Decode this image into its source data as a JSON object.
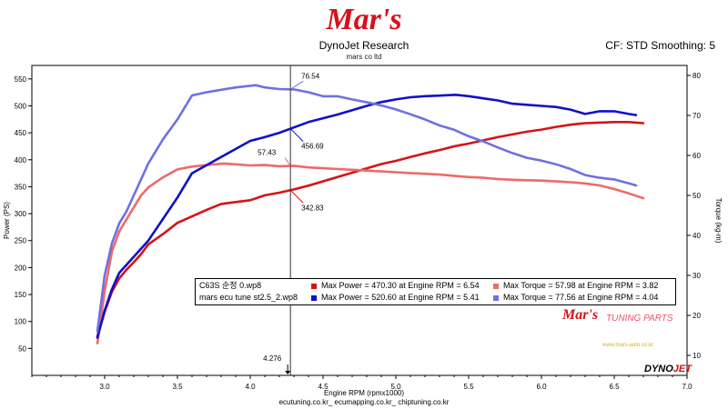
{
  "header": {
    "logo_text": "Mar's",
    "title": "DynoJet Research",
    "subtitle": "mars co ltd",
    "cf_info": "CF: STD Smoothing: 5"
  },
  "footer": "ecutuning.co.kr_ ecumapping.co.kr_ chiptuning.co.kr",
  "watermark": {
    "brand": "Mar's",
    "tuning": "TUNING PARTS",
    "url": "www.mars-auto.co.kr",
    "dynojet": "DYNO",
    "dynojet_b": "JET"
  },
  "legend": {
    "rows": [
      {
        "run": "C63S 순정 0.wp8",
        "power": "Max Power = 470.30 at Engine RPM = 6.54",
        "torque": "Max Torque = 57.98 at Engine RPM = 3.82",
        "power_color": "#d41414",
        "torque_color": "#ee6a6a"
      },
      {
        "run": "mars ecu tune st2.5_2.wp8",
        "power": "Max Power = 520.60 at Engine RPM = 5.41",
        "torque": "Max Torque = 77.56 at Engine RPM = 4.04",
        "power_color": "#1010c8",
        "torque_color": "#7070e0"
      }
    ]
  },
  "cursor": {
    "x_label": "4.276",
    "x": 4.276
  },
  "annotations": [
    {
      "text": "76.54",
      "color": "#7070e0"
    },
    {
      "text": "456.69",
      "color": "#1010c8"
    },
    {
      "text": "57.43",
      "color": "#ee6a6a"
    },
    {
      "text": "342.83",
      "color": "#d41414"
    }
  ],
  "chart_data": {
    "type": "line",
    "xlabel": "Engine RPM (rpmx1000)",
    "ylabel_left": "Power (PS)",
    "ylabel_right": "Torque (kg-m)",
    "xlim": [
      2.5,
      7.0
    ],
    "ylim_left": [
      0,
      575
    ],
    "ylim_right": [
      5,
      82.5
    ],
    "x_ticks": [
      "3.0",
      "3.5",
      "4.0",
      "4.5",
      "5.0",
      "5.5",
      "6.0",
      "6.5",
      "7.0"
    ],
    "y_ticks_left": [
      "50",
      "100",
      "150",
      "200",
      "250",
      "300",
      "350",
      "400",
      "450",
      "500",
      "550"
    ],
    "y_ticks_right": [
      "10",
      "20",
      "30",
      "40",
      "50",
      "60",
      "70",
      "80"
    ],
    "grid": false,
    "series": [
      {
        "name": "C63S 순정 0.wp8 Power",
        "axis": "left",
        "color": "#d41414",
        "x": [
          2.95,
          3.0,
          3.05,
          3.1,
          3.15,
          3.2,
          3.25,
          3.3,
          3.4,
          3.5,
          3.6,
          3.7,
          3.8,
          4.0,
          4.1,
          4.2,
          4.3,
          4.4,
          4.5,
          4.6,
          4.7,
          4.8,
          4.9,
          5.0,
          5.1,
          5.2,
          5.3,
          5.4,
          5.5,
          5.6,
          5.7,
          5.8,
          5.9,
          6.0,
          6.1,
          6.2,
          6.3,
          6.4,
          6.5,
          6.6,
          6.7
        ],
        "y": [
          72,
          118,
          155,
          180,
          196,
          210,
          225,
          243,
          262,
          283,
          295,
          307,
          318,
          325,
          334,
          339,
          345,
          352,
          360,
          368,
          376,
          384,
          392,
          398,
          405,
          412,
          418,
          425,
          430,
          436,
          442,
          447,
          452,
          456,
          461,
          465,
          468,
          469,
          470,
          470,
          468
        ]
      },
      {
        "name": "C63S 순정 0.wp8 Torque",
        "axis": "right",
        "color": "#ee6a6a",
        "x": [
          2.95,
          3.0,
          3.05,
          3.1,
          3.15,
          3.2,
          3.25,
          3.3,
          3.4,
          3.5,
          3.6,
          3.7,
          3.82,
          4.0,
          4.1,
          4.2,
          4.3,
          4.4,
          4.5,
          4.6,
          4.7,
          4.8,
          4.9,
          5.0,
          5.1,
          5.2,
          5.3,
          5.4,
          5.5,
          5.6,
          5.7,
          5.8,
          5.9,
          6.0,
          6.1,
          6.2,
          6.3,
          6.4,
          6.5,
          6.6,
          6.7
        ],
        "y": [
          13,
          26,
          36,
          41,
          44,
          47,
          50,
          52,
          54.5,
          56.5,
          57.2,
          57.6,
          57.98,
          57.5,
          57.6,
          57.3,
          57.4,
          57.0,
          56.8,
          56.6,
          56.4,
          56.2,
          56.0,
          55.8,
          55.6,
          55.4,
          55.2,
          54.9,
          54.6,
          54.4,
          54.1,
          53.9,
          53.8,
          53.7,
          53.5,
          53.3,
          53.0,
          52.5,
          51.6,
          50.5,
          49.3
        ]
      },
      {
        "name": "mars ecu tune st2.5_2.wp8 Power",
        "axis": "left",
        "color": "#1010c8",
        "x": [
          2.95,
          3.0,
          3.05,
          3.1,
          3.15,
          3.2,
          3.3,
          3.4,
          3.5,
          3.6,
          3.7,
          3.8,
          3.9,
          4.0,
          4.1,
          4.2,
          4.3,
          4.4,
          4.5,
          4.6,
          4.7,
          4.8,
          4.9,
          5.0,
          5.1,
          5.2,
          5.3,
          5.41,
          5.5,
          5.6,
          5.7,
          5.8,
          5.9,
          6.0,
          6.1,
          6.2,
          6.3,
          6.4,
          6.5,
          6.6,
          6.65
        ],
        "y": [
          70,
          120,
          160,
          190,
          205,
          220,
          250,
          290,
          330,
          375,
          390,
          405,
          420,
          435,
          442,
          450,
          460,
          470,
          477,
          484,
          492,
          500,
          507,
          512,
          516,
          518,
          519,
          520.6,
          518,
          514,
          510,
          504,
          502,
          500,
          498,
          493,
          485,
          490,
          490,
          485,
          483
        ]
      },
      {
        "name": "mars ecu tune st2.5_2.wp8 Torque",
        "axis": "right",
        "color": "#7070e0",
        "x": [
          2.95,
          3.0,
          3.05,
          3.1,
          3.15,
          3.2,
          3.3,
          3.4,
          3.5,
          3.6,
          3.7,
          3.8,
          3.9,
          4.04,
          4.1,
          4.2,
          4.3,
          4.4,
          4.5,
          4.6,
          4.7,
          4.8,
          4.9,
          5.0,
          5.1,
          5.2,
          5.3,
          5.4,
          5.5,
          5.6,
          5.7,
          5.8,
          5.9,
          6.0,
          6.1,
          6.2,
          6.3,
          6.4,
          6.5,
          6.6,
          6.65
        ],
        "y": [
          16,
          30,
          38,
          43,
          46,
          50,
          58,
          64,
          69,
          75,
          75.8,
          76.4,
          77.0,
          77.56,
          77.0,
          76.6,
          76.5,
          75.8,
          74.8,
          74.8,
          74.0,
          73.3,
          72.5,
          71.5,
          70.3,
          69.0,
          67.5,
          66.4,
          64.8,
          63.5,
          62.0,
          60.6,
          59.4,
          58.7,
          57.8,
          56.6,
          55.1,
          54.4,
          54.0,
          53.0,
          52.5
        ]
      }
    ]
  }
}
